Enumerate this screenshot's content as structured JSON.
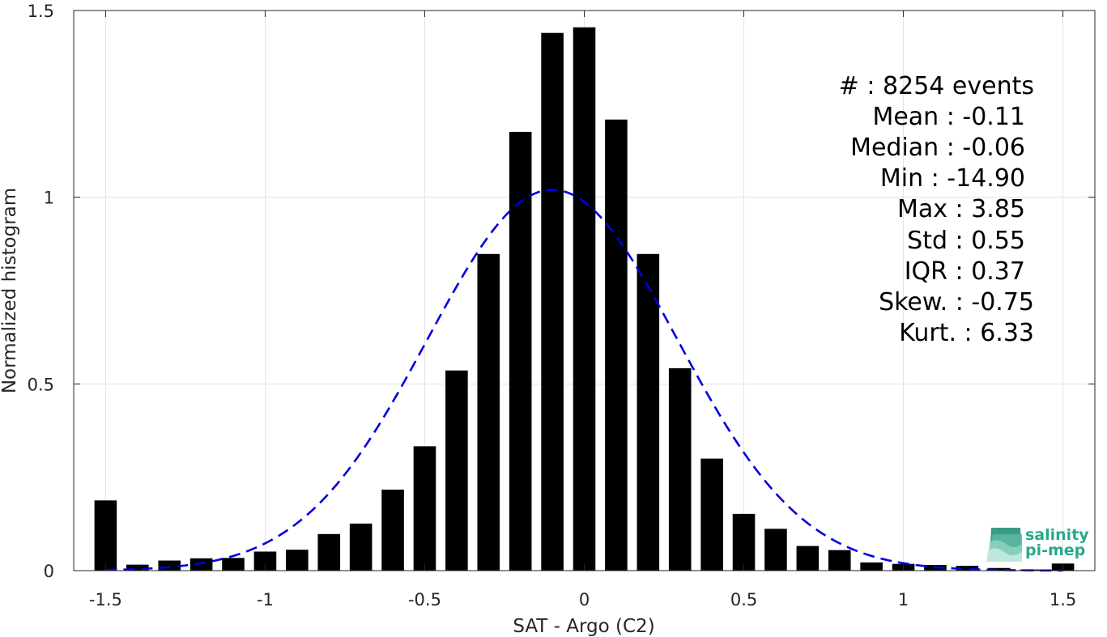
{
  "chart_data": {
    "type": "bar",
    "xlabel": "SAT - Argo (C2)",
    "ylabel": "Normalized histogram",
    "xlim": [
      -1.6,
      1.6
    ],
    "ylim": [
      0,
      1.5
    ],
    "x_ticks": [
      -1.5,
      -1,
      -0.5,
      0,
      0.5,
      1,
      1.5
    ],
    "x_tick_labels": [
      "-1.5",
      "-1",
      "-0.5",
      "0",
      "0.5",
      "1",
      "1.5"
    ],
    "y_ticks": [
      0,
      0.5,
      1,
      1.5
    ],
    "y_tick_labels": [
      "0",
      "0.5",
      "1",
      "1.5"
    ],
    "grid": true,
    "bar_color": "#000000",
    "bar_width": 0.07,
    "bars": {
      "x": [
        -1.5,
        -1.4,
        -1.3,
        -1.2,
        -1.1,
        -1.0,
        -0.9,
        -0.8,
        -0.7,
        -0.6,
        -0.5,
        -0.4,
        -0.3,
        -0.2,
        -0.1,
        0.0,
        0.1,
        0.2,
        0.3,
        0.4,
        0.5,
        0.6,
        0.7,
        0.8,
        0.9,
        1.0,
        1.1,
        1.2,
        1.3,
        1.4,
        1.5
      ],
      "values": [
        0.188,
        0.016,
        0.027,
        0.033,
        0.034,
        0.051,
        0.056,
        0.098,
        0.126,
        0.217,
        0.333,
        0.536,
        0.848,
        1.175,
        1.44,
        1.455,
        1.208,
        0.848,
        0.542,
        0.3,
        0.152,
        0.112,
        0.066,
        0.055,
        0.022,
        0.018,
        0.015,
        0.013,
        0.007,
        0.003,
        0.019
      ]
    },
    "fit_curve": {
      "type": "gaussian",
      "mean": -0.1,
      "std": 0.392,
      "peak": 1.02,
      "color": "#0000e0",
      "style": "dashed",
      "x_range": [
        -1.5,
        1.5
      ]
    },
    "stats_lines": [
      "#  : 8254 events",
      "Mean : -0.11",
      "Median : -0.06",
      "Min : -14.90",
      "Max : 3.85",
      "Std : 0.55",
      "IQR : 0.37",
      "Skew. : -0.75",
      "Kurt. : 6.33"
    ]
  },
  "logo": {
    "line1": "salinity",
    "line2": "pi-mep",
    "color": "#2aa88c"
  }
}
